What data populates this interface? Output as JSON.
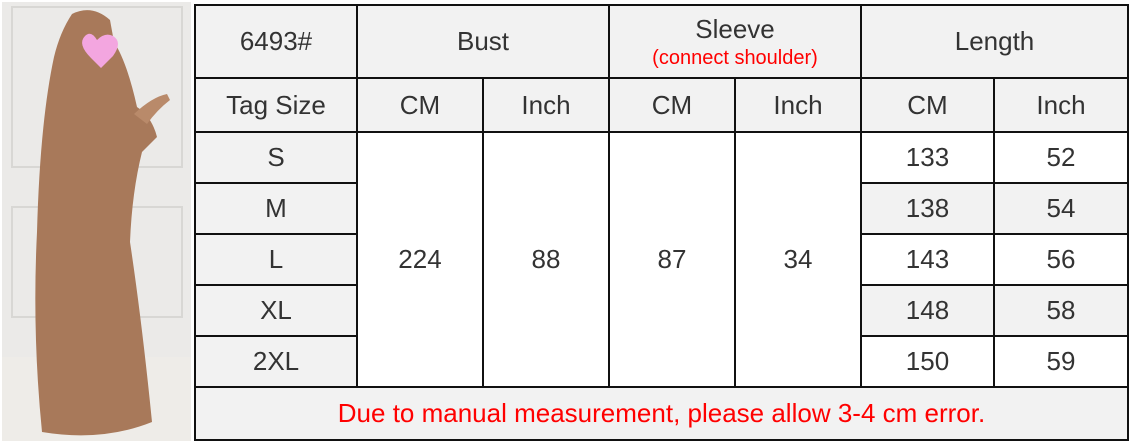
{
  "product_photo": {
    "description_icon": "abaya-model-photo",
    "accent": "#a8795a"
  },
  "table": {
    "model": "6493#",
    "headers": {
      "bust": "Bust",
      "sleeve": "Sleeve",
      "sleeve_note": "(connect shoulder)",
      "length": "Length"
    },
    "subheaders": {
      "tag_size": "Tag Size",
      "bust_cm": "CM",
      "bust_inch": "Inch",
      "sleeve_cm": "CM",
      "sleeve_inch": "Inch",
      "length_cm": "CM",
      "length_inch": "Inch"
    },
    "shared": {
      "bust_cm": "224",
      "bust_inch": "88",
      "sleeve_cm": "87",
      "sleeve_inch": "34"
    },
    "rows": [
      {
        "size": "S",
        "length_cm": "133",
        "length_inch": "52"
      },
      {
        "size": "M",
        "length_cm": "138",
        "length_inch": "54"
      },
      {
        "size": "L",
        "length_cm": "143",
        "length_inch": "56"
      },
      {
        "size": "XL",
        "length_cm": "148",
        "length_inch": "58"
      },
      {
        "size": "2XL",
        "length_cm": "150",
        "length_inch": "59"
      }
    ],
    "footer_note": "Due to manual measurement, please allow 3-4 cm error."
  },
  "colors": {
    "header_bg": "#f2f2f2",
    "note_red": "#ff0000",
    "text": "#333333"
  }
}
